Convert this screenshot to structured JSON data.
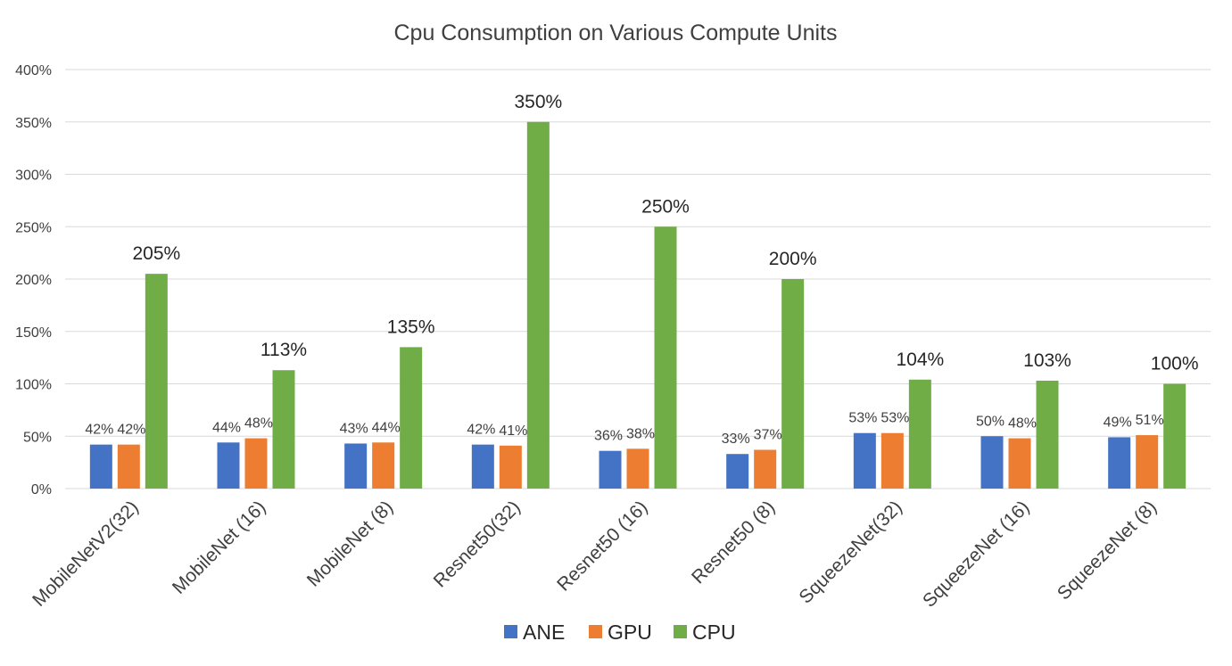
{
  "chart_data": {
    "type": "bar",
    "title": "Cpu Consumption on Various Compute Units",
    "categories": [
      "MobileNetV2(32)",
      "MobileNet (16)",
      "MobileNet (8)",
      "Resnet50(32)",
      "Resnet50 (16)",
      "Resnet50 (8)",
      "SqueezeNet(32)",
      "SqueezeNet (16)",
      "SqueezeNet (8)"
    ],
    "series": [
      {
        "name": "ANE",
        "color": "#4472c4",
        "values": [
          42,
          44,
          43,
          42,
          36,
          33,
          53,
          50,
          49
        ],
        "labels": [
          "42%",
          "44%",
          "43%",
          "42%",
          "36%",
          "33%",
          "53%",
          "50%",
          "49%"
        ]
      },
      {
        "name": "GPU",
        "color": "#ed7d31",
        "values": [
          42,
          48,
          44,
          41,
          38,
          37,
          53,
          48,
          51
        ],
        "labels": [
          "42%",
          "48%",
          "44%",
          "41%",
          "38%",
          "37%",
          "53%",
          "48%",
          "51%"
        ]
      },
      {
        "name": "CPU",
        "color": "#70ad47",
        "values": [
          205,
          113,
          135,
          350,
          250,
          200,
          104,
          103,
          100
        ],
        "labels": [
          "205%",
          "113%",
          "135%",
          "350%",
          "250%",
          "200%",
          "104%",
          "103%",
          "100%"
        ]
      }
    ],
    "yticks": [
      "0%",
      "50%",
      "100%",
      "150%",
      "200%",
      "250%",
      "300%",
      "350%",
      "400%"
    ],
    "ylim": [
      0,
      400
    ],
    "xlabel": "",
    "ylabel": "",
    "grid": true,
    "legend_position": "bottom"
  }
}
